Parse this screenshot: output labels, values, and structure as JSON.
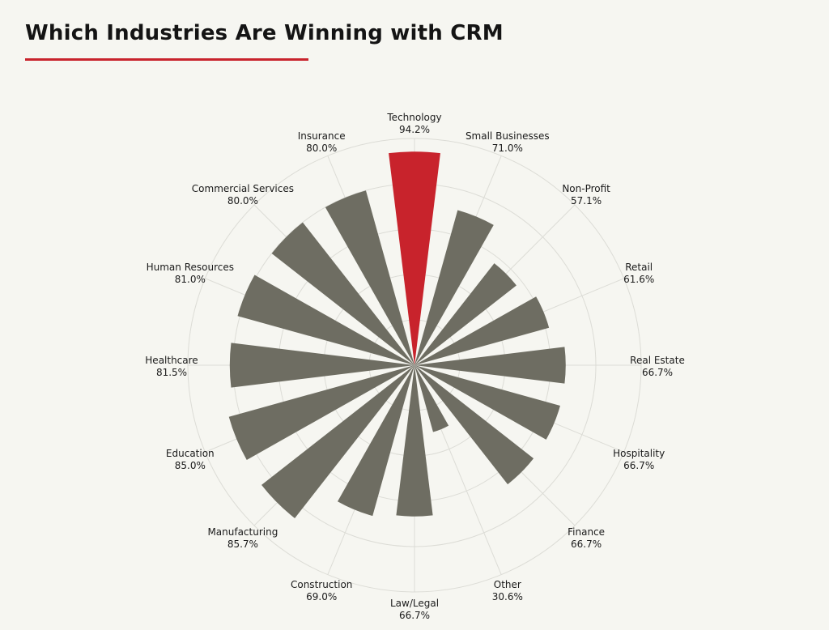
{
  "title": "Which Industries Are Winning with CRM",
  "colors": {
    "highlight": "#c8232c",
    "bar": "#6e6d62",
    "grid": "#dcdcd6",
    "background": "#f6f6f1",
    "title_rule": "#c8232c"
  },
  "chart_data": {
    "type": "bar",
    "subtype": "polar",
    "title": "Which Industries Are Winning with CRM",
    "categories": [
      "Technology",
      "Small Businesses",
      "Non-Profit",
      "Retail",
      "Real Estate",
      "Hospitality",
      "Finance",
      "Other",
      "Law/Legal",
      "Construction",
      "Manufacturing",
      "Education",
      "Healthcare",
      "Human Resources",
      "Commercial Services",
      "Insurance"
    ],
    "values": [
      94.2,
      71.0,
      57.1,
      61.6,
      66.7,
      66.7,
      66.7,
      30.6,
      66.7,
      69.0,
      85.7,
      85.0,
      81.5,
      81.0,
      80.0,
      80.0
    ],
    "value_labels": [
      "94.2%",
      "71.0%",
      "57.1%",
      "61.6%",
      "66.7%",
      "66.7%",
      "66.7%",
      "30.6%",
      "66.7%",
      "69.0%",
      "85.7%",
      "85.0%",
      "81.5%",
      "81.0%",
      "80.0%",
      "80.0%"
    ],
    "highlight_index": 0,
    "rlim": [
      0,
      100
    ],
    "grid": true
  }
}
